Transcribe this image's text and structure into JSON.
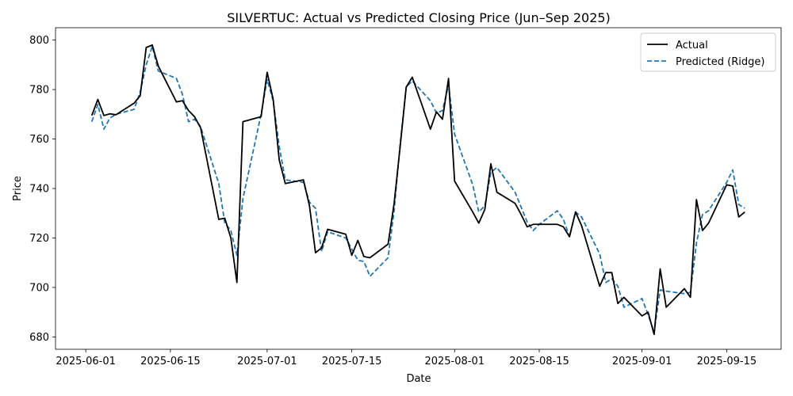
{
  "chart_data": {
    "type": "line",
    "title": "SILVERTUC: Actual vs Predicted Closing Price (Jun–Sep 2025)",
    "xlabel": "Date",
    "ylabel": "Price",
    "xlim": [
      "2025-05-27",
      "2025-09-24"
    ],
    "ylim": [
      675,
      805
    ],
    "x_ticks": [
      "2025-06-01",
      "2025-06-15",
      "2025-07-01",
      "2025-07-15",
      "2025-08-01",
      "2025-08-15",
      "2025-09-01",
      "2025-09-15"
    ],
    "y_ticks": [
      680,
      700,
      720,
      740,
      760,
      780,
      800
    ],
    "grid": false,
    "legend_position": "top-right",
    "series": [
      {
        "name": "Actual",
        "color": "#000000",
        "style": "solid",
        "points": [
          [
            "2025-06-02",
            769.5
          ],
          [
            "2025-06-03",
            776
          ],
          [
            "2025-06-04",
            769.5
          ],
          [
            "2025-06-05",
            770.2
          ],
          [
            "2025-06-06",
            769.8
          ],
          [
            "2025-06-09",
            774.5
          ],
          [
            "2025-06-10",
            777.5
          ],
          [
            "2025-06-11",
            797
          ],
          [
            "2025-06-12",
            798
          ],
          [
            "2025-06-13",
            789.5
          ],
          [
            "2025-06-16",
            775
          ],
          [
            "2025-06-17",
            775.5
          ],
          [
            "2025-06-18",
            771.5
          ],
          [
            "2025-06-19",
            769
          ],
          [
            "2025-06-20",
            764.5
          ],
          [
            "2025-06-23",
            727.5
          ],
          [
            "2025-06-24",
            728
          ],
          [
            "2025-06-25",
            720
          ],
          [
            "2025-06-26",
            702
          ],
          [
            "2025-06-27",
            767
          ],
          [
            "2025-06-30",
            769
          ],
          [
            "2025-07-01",
            787
          ],
          [
            "2025-07-02",
            776
          ],
          [
            "2025-07-03",
            751.5
          ],
          [
            "2025-07-04",
            742
          ],
          [
            "2025-07-07",
            743.5
          ],
          [
            "2025-07-08",
            733
          ],
          [
            "2025-07-09",
            714
          ],
          [
            "2025-07-10",
            716
          ],
          [
            "2025-07-11",
            723.5
          ],
          [
            "2025-07-14",
            721.5
          ],
          [
            "2025-07-15",
            713
          ],
          [
            "2025-07-16",
            719
          ],
          [
            "2025-07-17",
            712.5
          ],
          [
            "2025-07-18",
            712
          ],
          [
            "2025-07-21",
            717.5
          ],
          [
            "2025-07-22",
            734
          ],
          [
            "2025-07-23",
            757
          ],
          [
            "2025-07-24",
            781
          ],
          [
            "2025-07-25",
            785
          ],
          [
            "2025-07-28",
            764
          ],
          [
            "2025-07-29",
            771
          ],
          [
            "2025-07-30",
            768
          ],
          [
            "2025-07-31",
            784.5
          ],
          [
            "2025-08-01",
            743
          ],
          [
            "2025-08-04",
            730.5
          ],
          [
            "2025-08-05",
            726
          ],
          [
            "2025-08-06",
            731.5
          ],
          [
            "2025-08-07",
            750
          ],
          [
            "2025-08-08",
            738.5
          ],
          [
            "2025-08-11",
            734
          ],
          [
            "2025-08-12",
            729.5
          ],
          [
            "2025-08-13",
            724.5
          ],
          [
            "2025-08-14",
            725.5
          ],
          [
            "2025-08-15",
            725.5
          ],
          [
            "2025-08-18",
            725.5
          ],
          [
            "2025-08-19",
            724.5
          ],
          [
            "2025-08-20",
            720.5
          ],
          [
            "2025-08-21",
            730.5
          ],
          [
            "2025-08-22",
            725
          ],
          [
            "2025-08-25",
            700.5
          ],
          [
            "2025-08-26",
            706
          ],
          [
            "2025-08-27",
            706
          ],
          [
            "2025-08-28",
            693.5
          ],
          [
            "2025-08-29",
            696
          ],
          [
            "2025-09-01",
            688.5
          ],
          [
            "2025-09-02",
            690
          ],
          [
            "2025-09-03",
            681
          ],
          [
            "2025-09-04",
            707.5
          ],
          [
            "2025-09-05",
            692
          ],
          [
            "2025-09-08",
            699.5
          ],
          [
            "2025-09-09",
            696
          ],
          [
            "2025-09-10",
            735.5
          ],
          [
            "2025-09-11",
            723
          ],
          [
            "2025-09-12",
            726
          ],
          [
            "2025-09-15",
            741.5
          ],
          [
            "2025-09-16",
            741
          ],
          [
            "2025-09-17",
            728.5
          ],
          [
            "2025-09-18",
            730.5
          ]
        ]
      },
      {
        "name": "Predicted (Ridge)",
        "color": "#1f77b4",
        "style": "dashed",
        "points": [
          [
            "2025-06-02",
            767
          ],
          [
            "2025-06-03",
            774
          ],
          [
            "2025-06-04",
            764
          ],
          [
            "2025-06-05",
            768.5
          ],
          [
            "2025-06-06",
            770
          ],
          [
            "2025-06-09",
            772
          ],
          [
            "2025-06-10",
            779
          ],
          [
            "2025-06-11",
            790
          ],
          [
            "2025-06-12",
            797.5
          ],
          [
            "2025-06-13",
            787.5
          ],
          [
            "2025-06-16",
            784.5
          ],
          [
            "2025-06-17",
            778
          ],
          [
            "2025-06-18",
            767
          ],
          [
            "2025-06-19",
            768
          ],
          [
            "2025-06-20",
            765
          ],
          [
            "2025-06-23",
            742
          ],
          [
            "2025-06-24",
            726
          ],
          [
            "2025-06-25",
            723
          ],
          [
            "2025-06-26",
            713
          ],
          [
            "2025-06-27",
            736
          ],
          [
            "2025-06-30",
            770
          ],
          [
            "2025-07-01",
            784
          ],
          [
            "2025-07-02",
            775.5
          ],
          [
            "2025-07-03",
            757
          ],
          [
            "2025-07-04",
            743.5
          ],
          [
            "2025-07-07",
            742.5
          ],
          [
            "2025-07-08",
            734.5
          ],
          [
            "2025-07-09",
            732
          ],
          [
            "2025-07-10",
            714.5
          ],
          [
            "2025-07-11",
            722.5
          ],
          [
            "2025-07-14",
            720
          ],
          [
            "2025-07-15",
            715.5
          ],
          [
            "2025-07-16",
            711
          ],
          [
            "2025-07-17",
            710.5
          ],
          [
            "2025-07-18",
            704.5
          ],
          [
            "2025-07-21",
            712
          ],
          [
            "2025-07-22",
            731
          ],
          [
            "2025-07-23",
            758
          ],
          [
            "2025-07-24",
            781
          ],
          [
            "2025-07-25",
            783.5
          ],
          [
            "2025-07-28",
            775.5
          ],
          [
            "2025-07-29",
            770.5
          ],
          [
            "2025-07-30",
            771.5
          ],
          [
            "2025-07-31",
            782
          ],
          [
            "2025-08-01",
            762
          ],
          [
            "2025-08-04",
            741.5
          ],
          [
            "2025-08-05",
            730.5
          ],
          [
            "2025-08-06",
            733
          ],
          [
            "2025-08-07",
            746.5
          ],
          [
            "2025-08-08",
            748.5
          ],
          [
            "2025-08-11",
            738.5
          ],
          [
            "2025-08-12",
            732.5
          ],
          [
            "2025-08-13",
            726.5
          ],
          [
            "2025-08-14",
            723
          ],
          [
            "2025-08-15",
            725.5
          ],
          [
            "2025-08-18",
            731
          ],
          [
            "2025-08-19",
            727.5
          ],
          [
            "2025-08-20",
            720.5
          ],
          [
            "2025-08-21",
            730.5
          ],
          [
            "2025-08-22",
            728.5
          ],
          [
            "2025-08-25",
            713.5
          ],
          [
            "2025-08-26",
            702
          ],
          [
            "2025-08-27",
            703.5
          ],
          [
            "2025-08-28",
            700.5
          ],
          [
            "2025-08-29",
            692
          ],
          [
            "2025-09-01",
            695.5
          ],
          [
            "2025-09-02",
            689
          ],
          [
            "2025-09-03",
            682
          ],
          [
            "2025-09-04",
            699
          ],
          [
            "2025-09-05",
            698.5
          ],
          [
            "2025-09-08",
            697.5
          ],
          [
            "2025-09-09",
            698
          ],
          [
            "2025-09-10",
            718
          ],
          [
            "2025-09-11",
            729.5
          ],
          [
            "2025-09-12",
            731
          ],
          [
            "2025-09-15",
            742.5
          ],
          [
            "2025-09-16",
            747.5
          ],
          [
            "2025-09-17",
            733.5
          ],
          [
            "2025-09-18",
            732
          ]
        ]
      }
    ]
  }
}
